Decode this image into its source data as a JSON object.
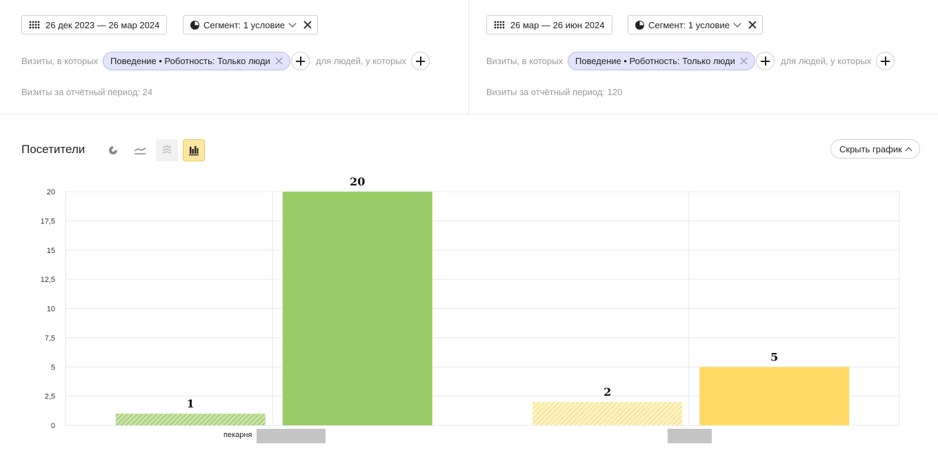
{
  "left_panel": {
    "date_range": "26 дек 2023 — 26 мар 2024",
    "segment_label": "Сегмент: 1 условие",
    "visits_prefix": "Визиты, в которых",
    "condition_chip": "Поведение • Роботность: Только люди",
    "people_suffix": "для людей, у которых",
    "visits_total": "Визиты за отчётный период: 24"
  },
  "right_panel": {
    "date_range": "26 мар — 26 июн 2024",
    "segment_label": "Сегмент: 1 условие",
    "visits_prefix": "Визиты, в которых",
    "condition_chip": "Поведение • Роботность: Только люди",
    "people_suffix": "для людей, у которых",
    "visits_total": "Визиты за отчётный период: 120"
  },
  "chart_header": {
    "title": "Посетители",
    "hide_button": "Скрыть график",
    "chart_types": [
      "pie-icon",
      "line-icon",
      "stacked-area-icon",
      "bar-chart-icon"
    ],
    "active_type": "bar-chart-icon"
  },
  "chart_data": {
    "type": "bar",
    "ylim": [
      0,
      20
    ],
    "y_ticks": [
      "0",
      "2,5",
      "5",
      "7,5",
      "10",
      "12,5",
      "15",
      "17,5",
      "20"
    ],
    "y_tick_values": [
      0,
      2.5,
      5,
      7.5,
      10,
      12.5,
      15,
      17.5,
      20
    ],
    "categories": [
      "пекарня",
      ""
    ],
    "series": [
      {
        "values": [
          1,
          2
        ],
        "style": "hatched"
      },
      {
        "values": [
          20,
          5
        ],
        "style": "solid"
      }
    ],
    "category_colors": [
      "#99cc66",
      "#ffd966"
    ],
    "data_labels": [
      "1",
      "20",
      "2",
      "5"
    ],
    "grid": true
  }
}
